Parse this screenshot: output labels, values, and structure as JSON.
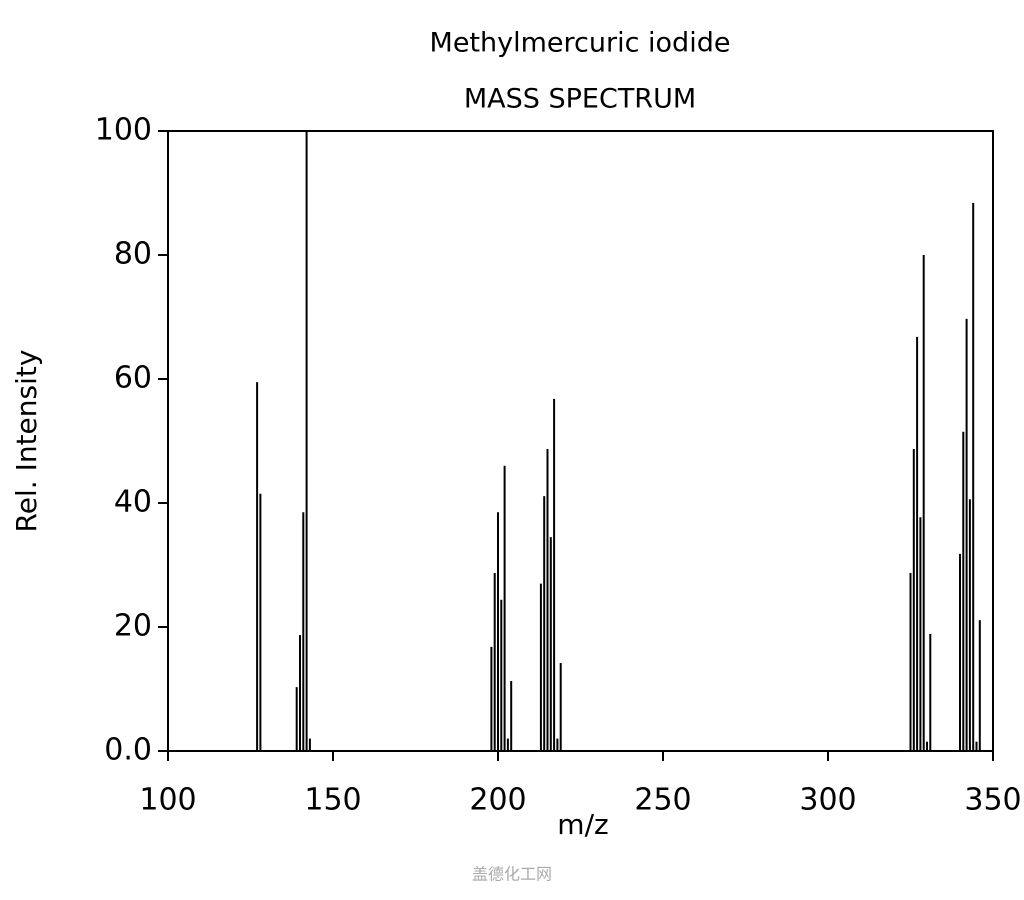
{
  "chart_data": {
    "type": "stem",
    "title": "Methylmercuric iodide",
    "subtitle": "MASS SPECTRUM",
    "x_label": "m/z",
    "y_label": "Rel. Intensity",
    "watermark": "盖德化工网",
    "color": "#000000",
    "x": [
      127,
      128,
      139,
      140,
      141,
      142,
      143,
      198,
      199,
      200,
      201,
      202,
      203,
      204,
      213,
      214,
      215,
      216,
      217,
      218,
      219,
      325,
      326,
      327,
      328,
      329,
      330,
      331,
      340,
      341,
      342,
      343,
      344,
      345,
      346
    ],
    "values": [
      59.5,
      41.5,
      10.3,
      18.7,
      38.5,
      100,
      2,
      16.8,
      28.7,
      38.5,
      24.4,
      46,
      2,
      11.3,
      27,
      41.1,
      48.7,
      34.5,
      56.8,
      2,
      14.2,
      28.7,
      48.7,
      66.8,
      37.7,
      80,
      1.5,
      18.9,
      31.8,
      51.5,
      69.7,
      40.6,
      88.4,
      1.5,
      21.1
    ],
    "xlim": [
      100,
      350
    ],
    "xticks": [
      100,
      150,
      200,
      250,
      300,
      350
    ],
    "ylim": [
      0,
      100
    ],
    "yticks": [
      {
        "value": 0,
        "label": "0.0"
      },
      20,
      40,
      60,
      80,
      100
    ]
  }
}
